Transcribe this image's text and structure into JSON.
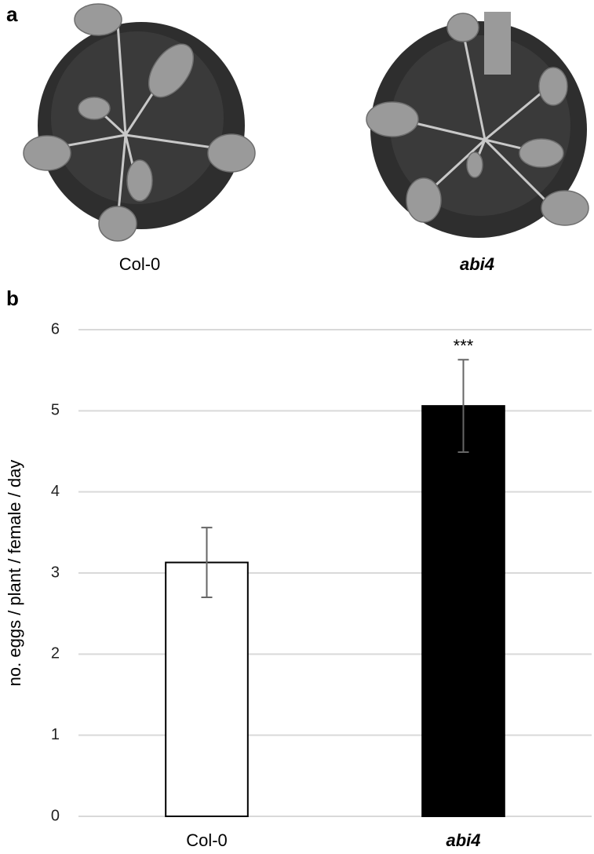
{
  "panel_a": {
    "label": "a",
    "captions": [
      "Col-0",
      "abi4"
    ]
  },
  "chart_data": {
    "type": "bar",
    "label": "b",
    "y_label": "no. eggs / plant / female / day",
    "categories": [
      "Col-0",
      "abi4"
    ],
    "values": [
      3.13,
      5.06
    ],
    "errors": [
      0.43,
      0.57
    ],
    "significance": [
      null,
      "***"
    ],
    "colors": [
      "#ffffff",
      "#000000"
    ],
    "ylim": [
      0,
      6
    ],
    "yticks": [
      0,
      1,
      2,
      3,
      4,
      5,
      6
    ],
    "grid": true
  }
}
